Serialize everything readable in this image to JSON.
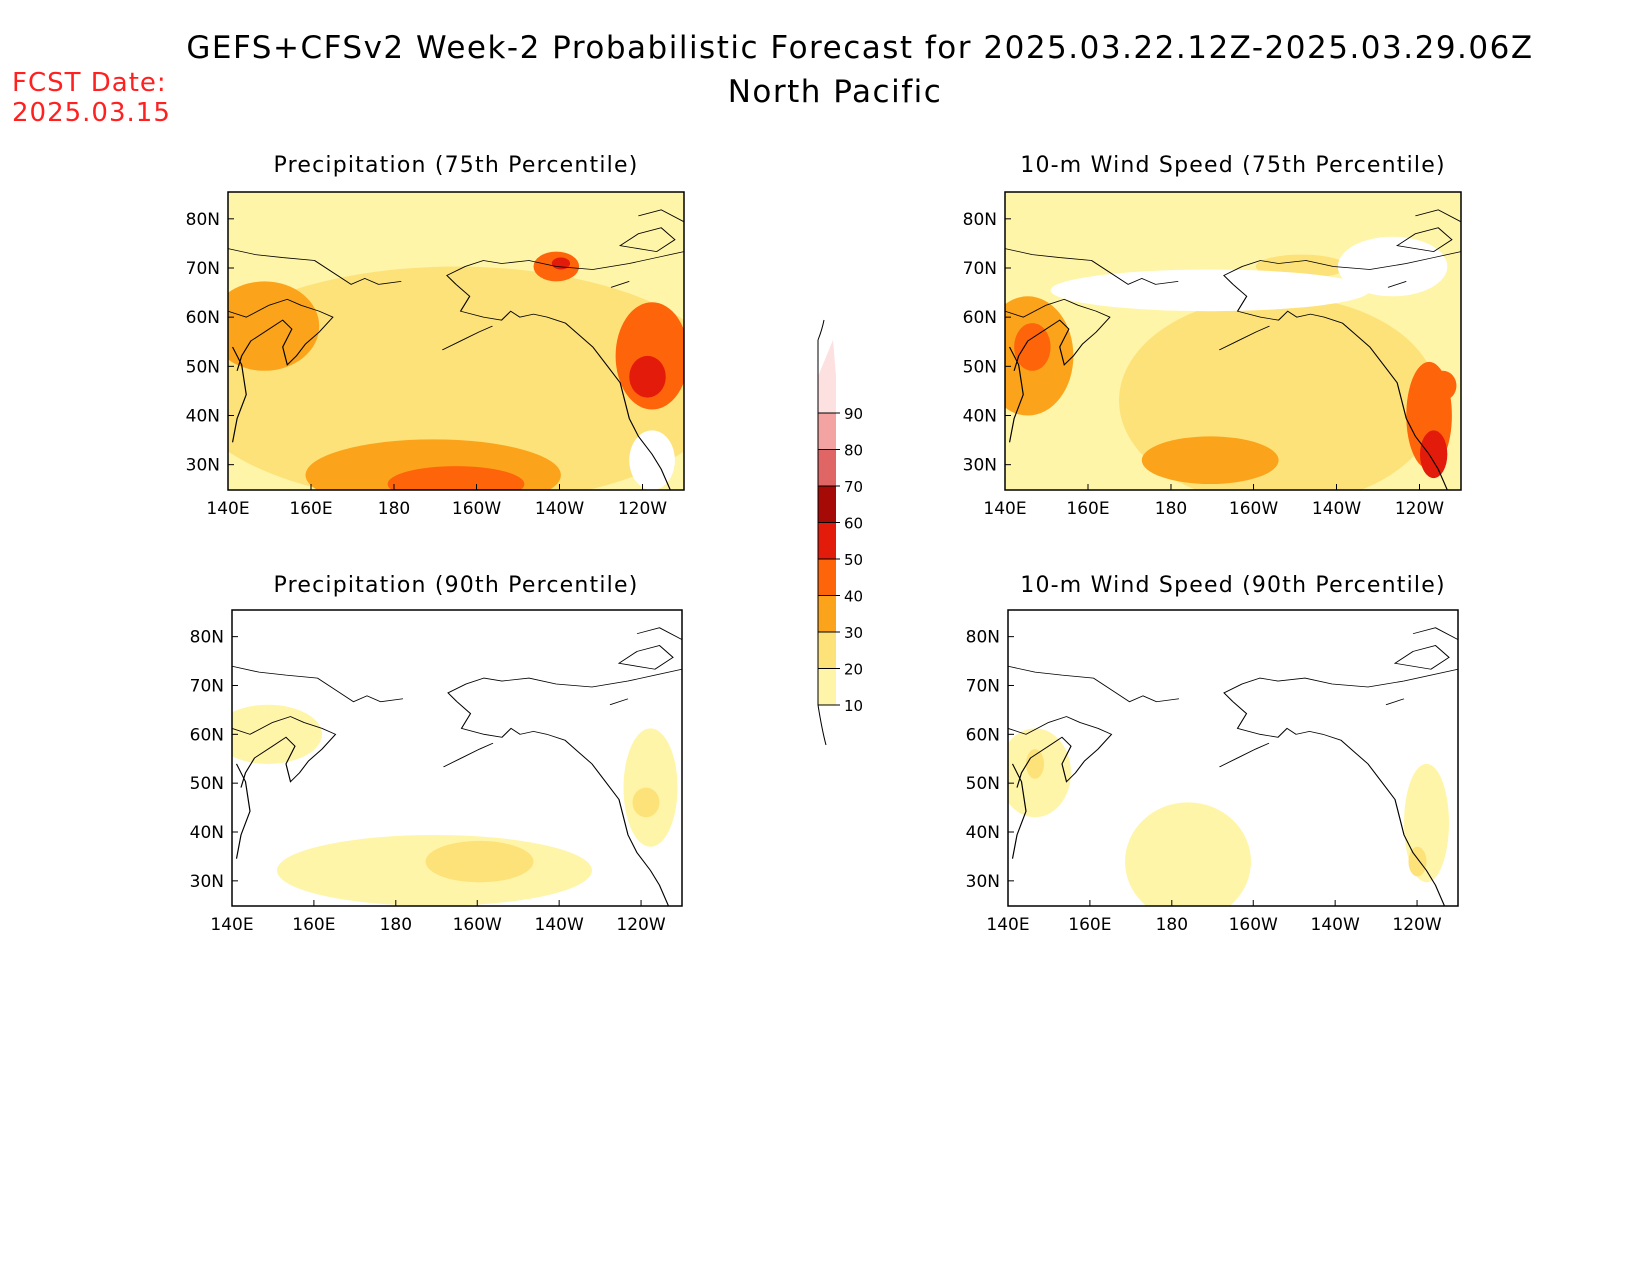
{
  "title": "GEFS+CFSv2 Week-2 Probabilistic Forecast for 2025.03.22.12Z-2025.03.29.06Z",
  "region": "North Pacific",
  "fcst_date_label": "FCST Date:",
  "fcst_date_value": "2025.03.15",
  "lon_labels": [
    "140E",
    "160E",
    "180",
    "160W",
    "140W",
    "120W"
  ],
  "lat_labels": [
    "80N",
    "70N",
    "60N",
    "50N",
    "40N",
    "30N"
  ],
  "panels": [
    {
      "id": "precip75",
      "title": "Precipitation (75th Percentile)"
    },
    {
      "id": "wind75",
      "title": "10-m Wind Speed (75th Percentile)"
    },
    {
      "id": "precip90",
      "title": "Precipitation (90th Percentile)"
    },
    {
      "id": "wind90",
      "title": "10-m Wind Speed (90th Percentile)"
    }
  ],
  "colorbar": {
    "levels": [
      "10",
      "20",
      "30",
      "40",
      "50",
      "60",
      "70",
      "80",
      "90"
    ],
    "colors": [
      "#fff5a8",
      "#fde27a",
      "#fba41b",
      "#fe6409",
      "#e31b0a",
      "#a50a06",
      "#e06666",
      "#f4a3a3",
      "#fde0e0"
    ]
  }
}
